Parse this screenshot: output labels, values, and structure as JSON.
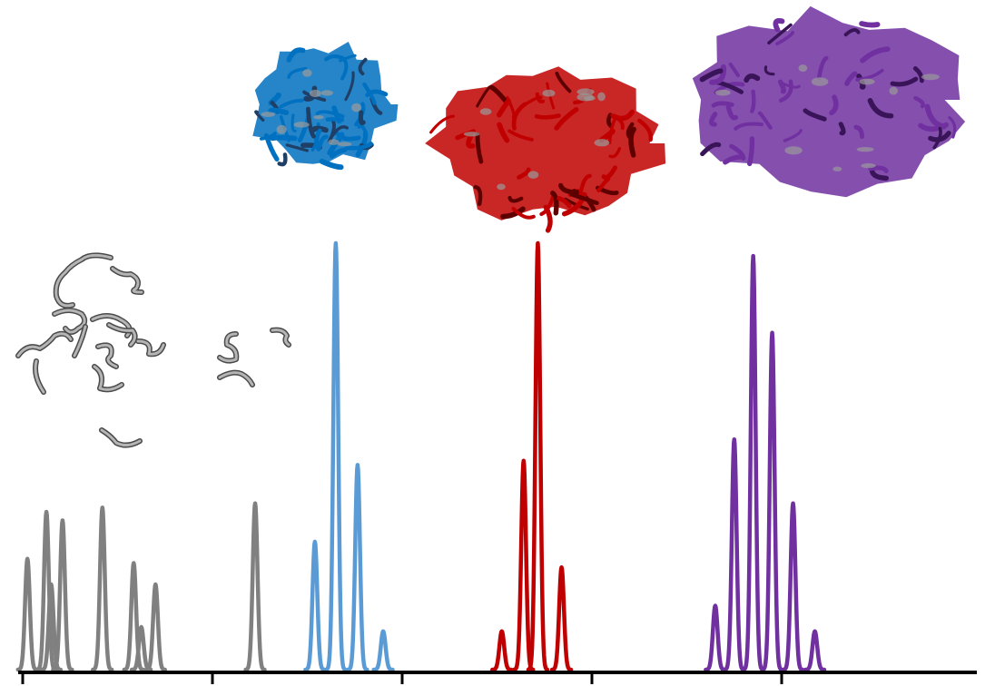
{
  "chart_data": {
    "type": "line",
    "title": "",
    "xlabel": "",
    "ylabel": "",
    "xlim": [
      0,
      10
    ],
    "ylim": [
      0,
      1
    ],
    "x_ticks": [
      0,
      2,
      4,
      6,
      8
    ],
    "x_tick_labels": [],
    "grid": false,
    "legend": "none",
    "peak_width": 0.025,
    "series": [
      {
        "color": "#808080",
        "peaks": [
          {
            "x": 0.05,
            "h": 0.26
          },
          {
            "x": 0.25,
            "h": 0.37
          },
          {
            "x": 0.3,
            "h": 0.2
          },
          {
            "x": 0.42,
            "h": 0.35
          },
          {
            "x": 0.84,
            "h": 0.38
          },
          {
            "x": 1.17,
            "h": 0.25
          },
          {
            "x": 1.25,
            "h": 0.1
          },
          {
            "x": 1.4,
            "h": 0.2
          },
          {
            "x": 2.45,
            "h": 0.39
          }
        ]
      },
      {
        "color": "#5b9bd5",
        "peaks": [
          {
            "x": 3.08,
            "h": 0.3
          },
          {
            "x": 3.3,
            "h": 1.0
          },
          {
            "x": 3.53,
            "h": 0.48
          },
          {
            "x": 3.8,
            "h": 0.09
          }
        ]
      },
      {
        "color": "#c00000",
        "peaks": [
          {
            "x": 5.05,
            "h": 0.09
          },
          {
            "x": 5.28,
            "h": 0.49
          },
          {
            "x": 5.43,
            "h": 1.0
          },
          {
            "x": 5.68,
            "h": 0.24
          }
        ]
      },
      {
        "color": "#7030a0",
        "peaks": [
          {
            "x": 7.3,
            "h": 0.15
          },
          {
            "x": 7.5,
            "h": 0.54
          },
          {
            "x": 7.7,
            "h": 0.97
          },
          {
            "x": 7.9,
            "h": 0.79
          },
          {
            "x": 8.12,
            "h": 0.39
          },
          {
            "x": 8.35,
            "h": 0.09
          }
        ]
      }
    ]
  },
  "illustrations": [
    {
      "icon": "disordered-fragments-icon",
      "color": "#7f7f7f"
    },
    {
      "icon": "blue-protein-structure-icon",
      "color": "#0070c0"
    },
    {
      "icon": "red-protein-structure-icon",
      "color": "#c00000"
    },
    {
      "icon": "purple-protein-structure-icon",
      "color": "#7030a0"
    }
  ]
}
